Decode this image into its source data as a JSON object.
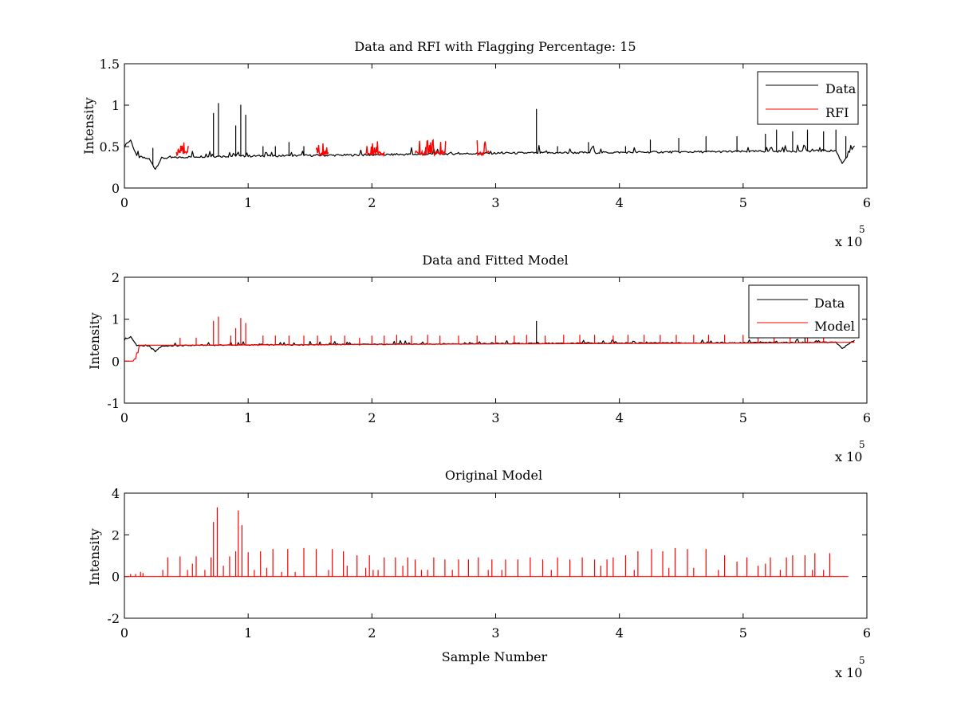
{
  "figure": {
    "background": "#ffffff",
    "axes_color": "#000000"
  },
  "chart_data": [
    {
      "type": "line",
      "title": "Data and RFI with Flagging Percentage: 15",
      "xlabel": "",
      "ylabel": "Intensity",
      "xlim": [
        0,
        600000
      ],
      "ylim": [
        0,
        1.5
      ],
      "xticks": [
        0,
        1,
        2,
        3,
        4,
        5,
        6
      ],
      "yticks": [
        "0",
        "0.5",
        "1",
        "1.5"
      ],
      "x_exponent": {
        "base": "x 10",
        "power": "5"
      },
      "grid": false,
      "legend": {
        "position": "top-right",
        "entries": [
          "Data",
          "RFI"
        ]
      },
      "series": [
        {
          "name": "Data",
          "color": "#000000",
          "baseline": [
            [
              0,
              0.5
            ],
            [
              5000,
              0.58
            ],
            [
              10000,
              0.38
            ],
            [
              20000,
              0.35
            ],
            [
              25000,
              0.23
            ],
            [
              30000,
              0.36
            ],
            [
              60000,
              0.38
            ],
            [
              200000,
              0.4
            ],
            [
              300000,
              0.42
            ],
            [
              400000,
              0.43
            ],
            [
              500000,
              0.44
            ],
            [
              575000,
              0.45
            ],
            [
              580000,
              0.3
            ],
            [
              585000,
              0.4
            ],
            [
              590000,
              0.5
            ]
          ],
          "spikes": [
            [
              23000,
              0.48
            ],
            [
              72000,
              0.9
            ],
            [
              76000,
              1.02
            ],
            [
              90000,
              0.75
            ],
            [
              94000,
              1.0
            ],
            [
              98000,
              0.88
            ],
            [
              112000,
              0.5
            ],
            [
              122000,
              0.5
            ],
            [
              133000,
              0.55
            ],
            [
              145000,
              0.5
            ],
            [
              333000,
              0.95
            ],
            [
              350000,
              0.5
            ],
            [
              375000,
              0.55
            ],
            [
              405000,
              0.5
            ],
            [
              425000,
              0.58
            ],
            [
              448000,
              0.6
            ],
            [
              470000,
              0.62
            ],
            [
              495000,
              0.62
            ],
            [
              518000,
              0.65
            ],
            [
              527000,
              0.7
            ],
            [
              540000,
              0.68
            ],
            [
              552000,
              0.7
            ],
            [
              565000,
              0.68
            ],
            [
              575000,
              0.7
            ],
            [
              583000,
              0.62
            ]
          ]
        },
        {
          "name": "RFI",
          "color": "#ff0000",
          "segments": [
            [
              42000,
              52000
            ],
            [
              155000,
              165000
            ],
            [
              195000,
              210000
            ],
            [
              235000,
              260000
            ],
            [
              285000,
              295000
            ]
          ],
          "value": 0.42,
          "spike_max": 0.58
        }
      ]
    },
    {
      "type": "line",
      "title": "Data and Fitted Model",
      "xlabel": "",
      "ylabel": "Intensity",
      "xlim": [
        0,
        600000
      ],
      "ylim": [
        -1,
        2
      ],
      "xticks": [
        0,
        1,
        2,
        3,
        4,
        5,
        6
      ],
      "yticks": [
        "-1",
        "0",
        "1",
        "2"
      ],
      "x_exponent": {
        "base": "x 10",
        "power": "5"
      },
      "grid": false,
      "legend": {
        "position": "top-right",
        "entries": [
          "Data",
          "Model"
        ]
      },
      "series": [
        {
          "name": "Data",
          "color": "#000000",
          "baseline": [
            [
              0,
              0.5
            ],
            [
              5000,
              0.58
            ],
            [
              10000,
              0.38
            ],
            [
              20000,
              0.35
            ],
            [
              25000,
              0.23
            ],
            [
              30000,
              0.36
            ],
            [
              60000,
              0.38
            ],
            [
              200000,
              0.4
            ],
            [
              300000,
              0.42
            ],
            [
              400000,
              0.43
            ],
            [
              500000,
              0.44
            ],
            [
              575000,
              0.45
            ],
            [
              580000,
              0.3
            ],
            [
              585000,
              0.4
            ],
            [
              590000,
              0.5
            ]
          ],
          "spikes": [
            [
              333000,
              0.95
            ],
            [
              550000,
              0.6
            ]
          ]
        },
        {
          "name": "Model",
          "color": "#ff0000",
          "baseline": [
            [
              0,
              0
            ],
            [
              7000,
              0
            ],
            [
              7000,
              0.05
            ],
            [
              9000,
              0.05
            ],
            [
              9000,
              0.2
            ],
            [
              11000,
              0.2
            ],
            [
              11000,
              0.38
            ],
            [
              60000,
              0.38
            ],
            [
              200000,
              0.4
            ],
            [
              300000,
              0.41
            ],
            [
              400000,
              0.42
            ],
            [
              500000,
              0.43
            ],
            [
              590000,
              0.45
            ]
          ],
          "spikes": [
            [
              45000,
              0.55
            ],
            [
              58000,
              0.55
            ],
            [
              72000,
              0.95
            ],
            [
              76000,
              1.05
            ],
            [
              86000,
              0.6
            ],
            [
              90000,
              0.78
            ],
            [
              94000,
              1.02
            ],
            [
              98000,
              0.9
            ],
            [
              112000,
              0.6
            ],
            [
              122000,
              0.6
            ],
            [
              133000,
              0.6
            ],
            [
              145000,
              0.6
            ],
            [
              156000,
              0.6
            ],
            [
              167000,
              0.6
            ],
            [
              178000,
              0.6
            ],
            [
              190000,
              0.55
            ],
            [
              200000,
              0.6
            ],
            [
              210000,
              0.6
            ],
            [
              220000,
              0.62
            ],
            [
              232000,
              0.6
            ],
            [
              245000,
              0.62
            ],
            [
              255000,
              0.6
            ],
            [
              270000,
              0.6
            ],
            [
              285000,
              0.6
            ],
            [
              300000,
              0.6
            ],
            [
              315000,
              0.6
            ],
            [
              325000,
              0.62
            ],
            [
              340000,
              0.6
            ],
            [
              355000,
              0.62
            ],
            [
              368000,
              0.62
            ],
            [
              380000,
              0.62
            ],
            [
              395000,
              0.6
            ],
            [
              407000,
              0.62
            ],
            [
              420000,
              0.62
            ],
            [
              433000,
              0.62
            ],
            [
              446000,
              0.62
            ],
            [
              460000,
              0.62
            ],
            [
              472000,
              0.62
            ],
            [
              485000,
              0.62
            ],
            [
              500000,
              0.62
            ],
            [
              512000,
              0.62
            ],
            [
              525000,
              0.62
            ],
            [
              538000,
              0.62
            ],
            [
              552000,
              0.62
            ],
            [
              565000,
              0.62
            ]
          ]
        }
      ]
    },
    {
      "type": "line",
      "title": "Original Model",
      "xlabel": "Sample Number",
      "ylabel": "Intensity",
      "xlim": [
        0,
        600000
      ],
      "ylim": [
        -2,
        4
      ],
      "xticks": [
        0,
        1,
        2,
        3,
        4,
        5,
        6
      ],
      "yticks": [
        "-2",
        "0",
        "2",
        "4"
      ],
      "x_exponent": {
        "base": "x 10",
        "power": "5"
      },
      "grid": false,
      "legend": null,
      "series": [
        {
          "color": "#ff0000",
          "baseline": [
            [
              0,
              0
            ],
            [
              585000,
              0
            ]
          ],
          "spikes": [
            [
              5000,
              0.1
            ],
            [
              9000,
              0.1
            ],
            [
              13000,
              0.2
            ],
            [
              15000,
              0.15
            ],
            [
              31000,
              0.3
            ],
            [
              35000,
              0.9
            ],
            [
              45000,
              0.95
            ],
            [
              51000,
              0.3
            ],
            [
              55000,
              0.6
            ],
            [
              58000,
              0.95
            ],
            [
              65000,
              0.3
            ],
            [
              70000,
              0.9
            ],
            [
              72000,
              2.6
            ],
            [
              75000,
              3.3
            ],
            [
              80000,
              0.5
            ],
            [
              85000,
              0.95
            ],
            [
              90000,
              1.2
            ],
            [
              92000,
              3.15
            ],
            [
              95000,
              2.45
            ],
            [
              100000,
              1.15
            ],
            [
              105000,
              0.3
            ],
            [
              110000,
              1.2
            ],
            [
              115000,
              0.4
            ],
            [
              120000,
              1.3
            ],
            [
              127000,
              0.2
            ],
            [
              132000,
              1.3
            ],
            [
              138000,
              0.2
            ],
            [
              145000,
              1.35
            ],
            [
              155000,
              1.3
            ],
            [
              165000,
              0.3
            ],
            [
              168000,
              1.3
            ],
            [
              177000,
              1.2
            ],
            [
              180000,
              0.5
            ],
            [
              188000,
              1.0
            ],
            [
              195000,
              0.4
            ],
            [
              198000,
              1.0
            ],
            [
              201000,
              0.3
            ],
            [
              205000,
              0.3
            ],
            [
              210000,
              0.9
            ],
            [
              219000,
              0.9
            ],
            [
              225000,
              0.5
            ],
            [
              229000,
              0.9
            ],
            [
              235000,
              0.8
            ],
            [
              240000,
              0.3
            ],
            [
              245000,
              0.3
            ],
            [
              250000,
              0.9
            ],
            [
              259000,
              0.8
            ],
            [
              265000,
              0.3
            ],
            [
              270000,
              0.8
            ],
            [
              278000,
              0.8
            ],
            [
              286000,
              0.9
            ],
            [
              294000,
              0.3
            ],
            [
              297000,
              0.8
            ],
            [
              305000,
              0.3
            ],
            [
              308000,
              0.8
            ],
            [
              318000,
              0.8
            ],
            [
              328000,
              0.9
            ],
            [
              338000,
              0.8
            ],
            [
              345000,
              0.3
            ],
            [
              350000,
              0.9
            ],
            [
              360000,
              0.8
            ],
            [
              370000,
              0.9
            ],
            [
              380000,
              0.8
            ],
            [
              385000,
              0.5
            ],
            [
              390000,
              0.8
            ],
            [
              395000,
              0.9
            ],
            [
              405000,
              1.0
            ],
            [
              412000,
              0.3
            ],
            [
              415000,
              1.2
            ],
            [
              426000,
              1.3
            ],
            [
              435000,
              1.2
            ],
            [
              440000,
              0.4
            ],
            [
              445000,
              1.35
            ],
            [
              455000,
              1.3
            ],
            [
              460000,
              0.4
            ],
            [
              470000,
              1.3
            ],
            [
              480000,
              0.3
            ],
            [
              485000,
              1.0
            ],
            [
              495000,
              0.7
            ],
            [
              503000,
              0.9
            ],
            [
              512000,
              0.5
            ],
            [
              518000,
              0.6
            ],
            [
              522000,
              0.9
            ],
            [
              530000,
              0.3
            ],
            [
              535000,
              0.9
            ],
            [
              540000,
              1.0
            ],
            [
              550000,
              1.0
            ],
            [
              556000,
              0.3
            ],
            [
              558000,
              1.1
            ],
            [
              565000,
              0.3
            ],
            [
              570000,
              1.1
            ]
          ]
        }
      ]
    }
  ]
}
